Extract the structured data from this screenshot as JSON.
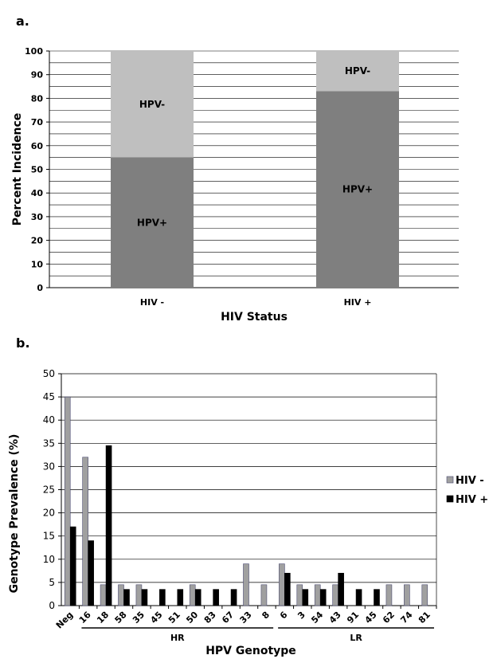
{
  "chart_data": [
    {
      "panel": "a.",
      "type": "bar",
      "stacked": true,
      "categories": [
        "HIV -",
        "HIV +"
      ],
      "series": [
        {
          "name": "HPV+",
          "values": [
            55,
            83
          ],
          "color": "#7f7f7f"
        },
        {
          "name": "HPV-",
          "values": [
            45,
            17
          ],
          "color": "#bfbfbf"
        }
      ],
      "xlabel": "HIV Status",
      "ylabel": "Percent Incidence",
      "ylim": [
        0,
        100
      ],
      "yticks": [
        0,
        10,
        20,
        30,
        40,
        50,
        60,
        70,
        80,
        90,
        100
      ],
      "grid": true
    },
    {
      "panel": "b.",
      "type": "bar",
      "categories": [
        "Neg",
        "16",
        "18",
        "58",
        "35",
        "45",
        "51",
        "50",
        "83",
        "67",
        "33",
        "8",
        "6",
        "3",
        "54",
        "43",
        "91",
        "45",
        "62",
        "74",
        "81"
      ],
      "series": [
        {
          "name": "HIV -",
          "values": [
            45,
            32,
            4.5,
            4.5,
            4.5,
            0,
            0,
            4.5,
            0,
            0,
            9,
            4.5,
            9,
            4.5,
            4.5,
            4.5,
            0,
            0,
            4.5,
            4.5,
            4.5
          ],
          "color": "#a0a0a0"
        },
        {
          "name": "HIV +",
          "values": [
            17,
            14,
            34.5,
            3.5,
            3.5,
            3.5,
            3.5,
            3.5,
            3.5,
            3.5,
            0,
            0,
            7,
            3.5,
            3.5,
            7,
            3.5,
            3.5,
            0,
            0,
            0
          ],
          "color": "#000000"
        }
      ],
      "groups": [
        {
          "label": "HR",
          "from": "16",
          "to": "8"
        },
        {
          "label": "LR",
          "from": "6",
          "to": "81"
        }
      ],
      "xlabel": "HPV Genotype",
      "ylabel": "Genotype Prevalence (%)",
      "ylim": [
        0,
        50
      ],
      "yticks": [
        0,
        5,
        10,
        15,
        20,
        25,
        30,
        35,
        40,
        45,
        50
      ],
      "grid": true,
      "legend": "right"
    }
  ]
}
